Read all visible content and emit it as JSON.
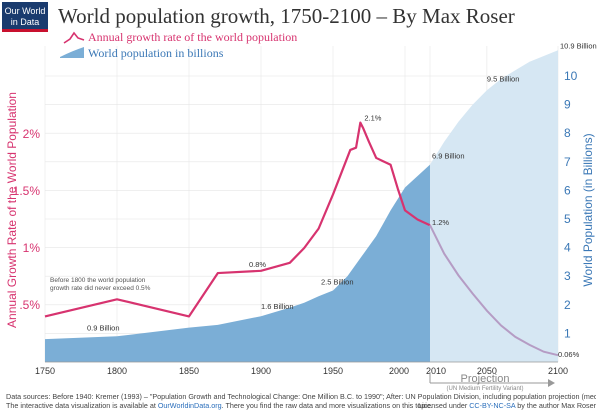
{
  "logo": {
    "line1": "Our World",
    "line2": "in Data"
  },
  "title": "World population growth, 1750-2100 – By Max Roser",
  "colors": {
    "growth": "#d7336f",
    "growth_projection": "#b59cc4",
    "population": "#7baed6",
    "population_projection": "#d6e7f3",
    "grid": "#e6e6e6",
    "projection_label": "#888888"
  },
  "chart_data": {
    "type": "area",
    "title": "World population growth, 1750-2100",
    "xlabel": "Projection",
    "xlabel_note": "(UN Medium Fertility Variant)",
    "xlim": [
      1750,
      2100
    ],
    "x_ticks": [
      "1750",
      "1800",
      "1850",
      "1900",
      "1950",
      "2000",
      "2010",
      "2050",
      "2100"
    ],
    "left_axis": {
      "label": "Annual Growth Rate of the World Population",
      "ticks": [
        ".5%",
        "1%",
        "1.5%",
        "2%"
      ],
      "values": [
        0.5,
        1,
        1.5,
        2
      ]
    },
    "right_axis": {
      "label": "World Population (in Billions)",
      "ticks": [
        "1",
        "2",
        "3",
        "4",
        "5",
        "6",
        "7",
        "8",
        "9",
        "10"
      ],
      "values": [
        1,
        2,
        3,
        4,
        5,
        6,
        7,
        8,
        9,
        10
      ],
      "ylim": [
        0,
        10.9
      ]
    },
    "series": [
      {
        "name": "Annual growth rate of the world population",
        "axis": "left",
        "x": [
          1750,
          1800,
          1850,
          1870,
          1900,
          1920,
          1930,
          1940,
          1950,
          1962,
          1966,
          1969,
          1971,
          1975,
          1980,
          1985,
          1990,
          1995,
          2000,
          2005,
          2010
        ],
        "values": [
          0.4,
          0.55,
          0.4,
          0.78,
          0.8,
          0.87,
          1.0,
          1.17,
          1.47,
          1.86,
          1.88,
          2.1,
          2.05,
          1.93,
          1.79,
          1.76,
          1.73,
          1.52,
          1.33,
          1.25,
          1.2
        ]
      },
      {
        "name": "Annual growth rate (projection)",
        "axis": "left",
        "x": [
          2010,
          2020,
          2030,
          2040,
          2050,
          2060,
          2070,
          2080,
          2090,
          2100
        ],
        "values": [
          1.2,
          0.95,
          0.76,
          0.6,
          0.45,
          0.32,
          0.22,
          0.15,
          0.09,
          0.06
        ]
      },
      {
        "name": "World population in billions",
        "axis": "right",
        "x": [
          1750,
          1800,
          1850,
          1870,
          1900,
          1920,
          1930,
          1940,
          1950,
          1960,
          1970,
          1980,
          1990,
          2000,
          2010
        ],
        "values": [
          0.8,
          0.9,
          1.2,
          1.3,
          1.6,
          1.9,
          2.07,
          2.3,
          2.5,
          3.0,
          3.7,
          4.4,
          5.3,
          6.1,
          6.9
        ]
      },
      {
        "name": "World population (projection)",
        "axis": "right",
        "x": [
          2010,
          2020,
          2030,
          2040,
          2050,
          2060,
          2070,
          2080,
          2090,
          2100
        ],
        "values": [
          6.9,
          7.7,
          8.4,
          9.0,
          9.5,
          9.9,
          10.2,
          10.5,
          10.7,
          10.9
        ]
      }
    ],
    "annotations": [
      {
        "text": "2.1%",
        "axis": "left",
        "x": 1969,
        "y": 2.1
      },
      {
        "text": "0.8%",
        "axis": "left",
        "x": 1900,
        "y": 0.8
      },
      {
        "text": "1.2%",
        "axis": "left",
        "x": 2010,
        "y": 1.2
      },
      {
        "text": "0.06%",
        "axis": "left",
        "x": 2100,
        "y": 0.06
      },
      {
        "text": "0.9 Billion",
        "axis": "right",
        "x": 1800,
        "y": 0.9
      },
      {
        "text": "1.6 Billion",
        "axis": "right",
        "x": 1900,
        "y": 1.6
      },
      {
        "text": "2.5 Billion",
        "axis": "right",
        "x": 1950,
        "y": 2.5
      },
      {
        "text": "6.9 Billion",
        "axis": "right",
        "x": 2010,
        "y": 6.9
      },
      {
        "text": "9.5 Billion",
        "axis": "right",
        "x": 2050,
        "y": 9.5
      },
      {
        "text": "10.9 Billion",
        "axis": "right",
        "x": 2100,
        "y": 10.9
      }
    ],
    "note_lines": [
      "Before 1800 the world population",
      "growth rate did never exceed 0.5%"
    ]
  },
  "legend": [
    {
      "label": "Annual growth rate of the world population"
    },
    {
      "label": "World population in billions"
    }
  ],
  "footer": {
    "line1": "Data sources:  Before 1940: Kremer (1993) – \"Population Growth and Technological Change: One Million B.C. to 1990\"; After: UN Population Division, including population projection (medium variant)",
    "line2_pre": "The interactive data visualization is available at ",
    "link1": "OurWorldinData.org",
    "line2_post": ". There you find the raw data and more visualizations on this topic.",
    "license_pre": "Licensed under ",
    "link2": "CC-BY-NC-SA",
    "license_post": " by the author Max Roser"
  }
}
